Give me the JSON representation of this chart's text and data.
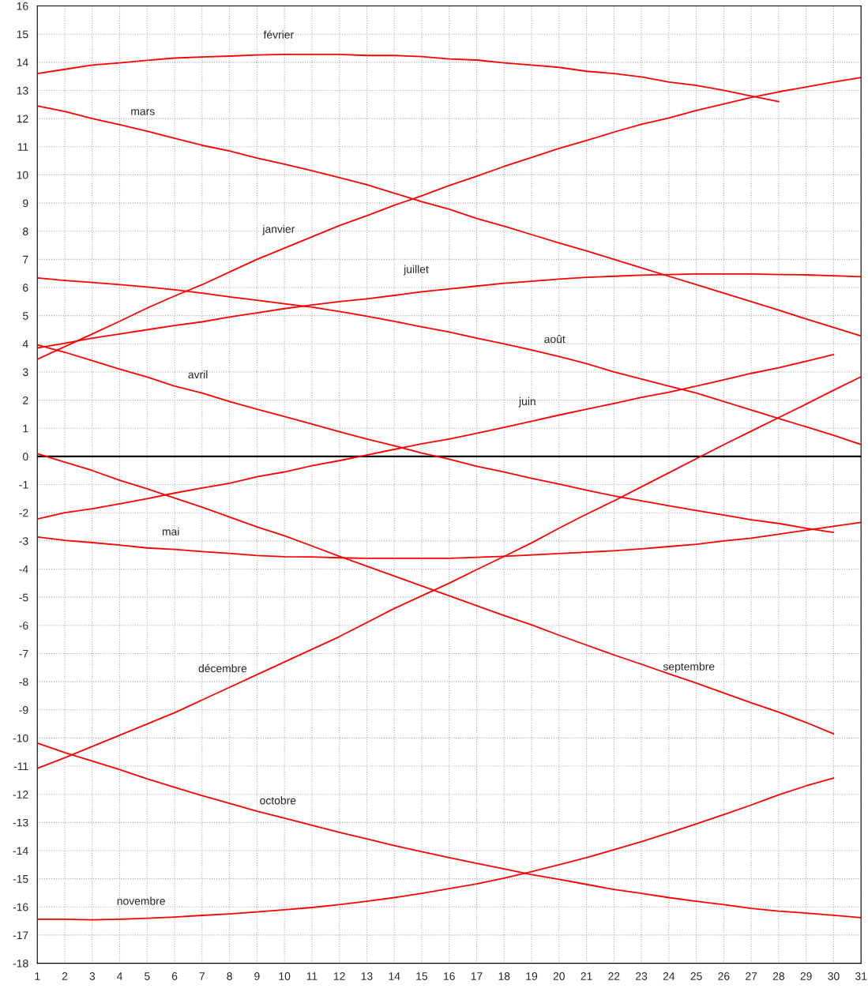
{
  "chart_data": {
    "type": "line",
    "x": [
      1,
      2,
      3,
      4,
      5,
      6,
      7,
      8,
      9,
      10,
      11,
      12,
      13,
      14,
      15,
      16,
      17,
      18,
      19,
      20,
      21,
      22,
      23,
      24,
      25,
      26,
      27,
      28,
      29,
      30,
      31
    ],
    "xlim": [
      1,
      31
    ],
    "xticks": [
      1,
      2,
      3,
      4,
      5,
      6,
      7,
      8,
      9,
      10,
      11,
      12,
      13,
      14,
      15,
      16,
      17,
      18,
      19,
      20,
      21,
      22,
      23,
      24,
      25,
      26,
      27,
      28,
      29,
      30,
      31
    ],
    "ylim": [
      -18,
      16
    ],
    "yticks": [
      -18,
      -17,
      -16,
      -15,
      -14,
      -13,
      -12,
      -11,
      -10,
      -9,
      -8,
      -7,
      -6,
      -5,
      -4,
      -3,
      -2,
      -1,
      0,
      1,
      2,
      3,
      4,
      5,
      6,
      7,
      8,
      9,
      10,
      11,
      12,
      13,
      14,
      15,
      16
    ],
    "grid": true,
    "legend": false,
    "marker": "none",
    "line_style": "solid",
    "ref_lines": [
      {
        "axis": "y",
        "value": 0,
        "color": "#000000"
      }
    ],
    "series": [
      {
        "name": "janvier",
        "color": "#ff0000",
        "values": [
          3.45,
          3.9,
          4.35,
          4.8,
          5.27,
          5.7,
          6.1,
          6.55,
          7.0,
          7.4,
          7.8,
          8.2,
          8.55,
          8.92,
          9.26,
          9.62,
          9.95,
          10.3,
          10.62,
          10.94,
          11.22,
          11.52,
          11.8,
          12.02,
          12.29,
          12.52,
          12.75,
          12.95,
          13.12,
          13.3,
          13.46
        ]
      },
      {
        "name": "février",
        "color": "#ff0000",
        "x": [
          1,
          2,
          3,
          4,
          5,
          6,
          7,
          8,
          9,
          10,
          11,
          12,
          13,
          14,
          15,
          16,
          17,
          18,
          19,
          20,
          21,
          22,
          23,
          24,
          25,
          26,
          27,
          28
        ],
        "values": [
          13.6,
          13.75,
          13.9,
          13.98,
          14.07,
          14.15,
          14.19,
          14.22,
          14.26,
          14.28,
          14.28,
          14.28,
          14.24,
          14.24,
          14.2,
          14.12,
          14.08,
          13.98,
          13.9,
          13.82,
          13.68,
          13.6,
          13.48,
          13.3,
          13.18,
          13.0,
          12.8,
          12.6
        ]
      },
      {
        "name": "mars",
        "color": "#ff0000",
        "values": [
          12.45,
          12.25,
          12.0,
          11.78,
          11.55,
          11.3,
          11.05,
          10.85,
          10.6,
          10.38,
          10.15,
          9.9,
          9.65,
          9.35,
          9.05,
          8.78,
          8.45,
          8.18,
          7.88,
          7.58,
          7.3,
          7.0,
          6.7,
          6.4,
          6.1,
          5.8,
          5.5,
          5.2,
          4.88,
          4.58,
          4.28
        ]
      },
      {
        "name": "avril",
        "color": "#ff0000",
        "x": [
          1,
          2,
          3,
          4,
          5,
          6,
          7,
          8,
          9,
          10,
          11,
          12,
          13,
          14,
          15,
          16,
          17,
          18,
          19,
          20,
          21,
          22,
          23,
          24,
          25,
          26,
          27,
          28,
          29,
          30
        ],
        "values": [
          3.96,
          3.7,
          3.4,
          3.1,
          2.82,
          2.5,
          2.25,
          1.95,
          1.68,
          1.42,
          1.15,
          0.88,
          0.62,
          0.38,
          0.12,
          -0.1,
          -0.35,
          -0.55,
          -0.78,
          -0.98,
          -1.2,
          -1.4,
          -1.58,
          -1.75,
          -1.92,
          -2.08,
          -2.25,
          -2.38,
          -2.55,
          -2.7
        ]
      },
      {
        "name": "mai",
        "color": "#ff0000",
        "values": [
          -2.86,
          -2.98,
          -3.06,
          -3.15,
          -3.25,
          -3.3,
          -3.38,
          -3.44,
          -3.52,
          -3.56,
          -3.57,
          -3.6,
          -3.62,
          -3.62,
          -3.62,
          -3.62,
          -3.58,
          -3.55,
          -3.5,
          -3.45,
          -3.4,
          -3.35,
          -3.28,
          -3.2,
          -3.12,
          -3.0,
          -2.9,
          -2.76,
          -2.62,
          -2.48,
          -2.34
        ]
      },
      {
        "name": "juin",
        "color": "#ff0000",
        "x": [
          1,
          2,
          3,
          4,
          5,
          6,
          7,
          8,
          9,
          10,
          11,
          12,
          13,
          14,
          15,
          16,
          17,
          18,
          19,
          20,
          21,
          22,
          23,
          24,
          25,
          26,
          27,
          28,
          29,
          30
        ],
        "values": [
          -2.22,
          -2.0,
          -1.86,
          -1.68,
          -1.5,
          -1.3,
          -1.12,
          -0.95,
          -0.72,
          -0.55,
          -0.33,
          -0.15,
          0.05,
          0.25,
          0.45,
          0.62,
          0.82,
          1.03,
          1.25,
          1.47,
          1.68,
          1.88,
          2.1,
          2.28,
          2.5,
          2.72,
          2.95,
          3.15,
          3.38,
          3.62
        ]
      },
      {
        "name": "juillet",
        "color": "#ff0000",
        "values": [
          3.85,
          4.02,
          4.2,
          4.35,
          4.5,
          4.65,
          4.78,
          4.95,
          5.1,
          5.25,
          5.38,
          5.5,
          5.6,
          5.72,
          5.85,
          5.95,
          6.05,
          6.15,
          6.22,
          6.3,
          6.36,
          6.4,
          6.44,
          6.46,
          6.48,
          6.48,
          6.48,
          6.46,
          6.45,
          6.42,
          6.38
        ]
      },
      {
        "name": "août",
        "color": "#ff0000",
        "values": [
          6.34,
          6.25,
          6.18,
          6.1,
          6.02,
          5.92,
          5.8,
          5.67,
          5.55,
          5.42,
          5.3,
          5.15,
          4.98,
          4.8,
          4.6,
          4.42,
          4.2,
          4.0,
          3.78,
          3.55,
          3.3,
          3.0,
          2.75,
          2.5,
          2.25,
          1.95,
          1.65,
          1.35,
          1.05,
          0.75,
          0.42
        ]
      },
      {
        "name": "septembre",
        "color": "#ff0000",
        "x": [
          1,
          2,
          3,
          4,
          5,
          6,
          7,
          8,
          9,
          10,
          11,
          12,
          13,
          14,
          15,
          16,
          17,
          18,
          19,
          20,
          21,
          22,
          23,
          24,
          25,
          26,
          27,
          28,
          29,
          30
        ],
        "values": [
          0.1,
          -0.2,
          -0.5,
          -0.85,
          -1.15,
          -1.48,
          -1.8,
          -2.15,
          -2.5,
          -2.82,
          -3.18,
          -3.55,
          -3.9,
          -4.25,
          -4.6,
          -4.95,
          -5.3,
          -5.65,
          -5.98,
          -6.35,
          -6.7,
          -7.05,
          -7.38,
          -7.72,
          -8.05,
          -8.4,
          -8.75,
          -9.08,
          -9.45,
          -9.85
        ]
      },
      {
        "name": "octobre",
        "color": "#ff0000",
        "values": [
          -10.18,
          -10.52,
          -10.82,
          -11.12,
          -11.45,
          -11.75,
          -12.05,
          -12.32,
          -12.6,
          -12.85,
          -13.1,
          -13.35,
          -13.58,
          -13.82,
          -14.04,
          -14.25,
          -14.45,
          -14.65,
          -14.85,
          -15.02,
          -15.2,
          -15.38,
          -15.52,
          -15.67,
          -15.8,
          -15.92,
          -16.05,
          -16.15,
          -16.22,
          -16.3,
          -16.38
        ]
      },
      {
        "name": "novembre",
        "color": "#ff0000",
        "x": [
          1,
          2,
          3,
          4,
          5,
          6,
          7,
          8,
          9,
          10,
          11,
          12,
          13,
          14,
          15,
          16,
          17,
          18,
          19,
          20,
          21,
          22,
          23,
          24,
          25,
          26,
          27,
          28,
          29,
          30
        ],
        "values": [
          -16.44,
          -16.44,
          -16.46,
          -16.44,
          -16.4,
          -16.36,
          -16.3,
          -16.25,
          -16.18,
          -16.1,
          -16.02,
          -15.92,
          -15.8,
          -15.67,
          -15.52,
          -15.35,
          -15.18,
          -14.98,
          -14.75,
          -14.5,
          -14.25,
          -13.97,
          -13.68,
          -13.37,
          -13.05,
          -12.72,
          -12.38,
          -12.02,
          -11.7,
          -11.42
        ]
      },
      {
        "name": "décembre",
        "color": "#ff0000",
        "values": [
          -11.08,
          -10.7,
          -10.3,
          -9.9,
          -9.5,
          -9.1,
          -8.65,
          -8.2,
          -7.75,
          -7.3,
          -6.85,
          -6.4,
          -5.9,
          -5.4,
          -4.95,
          -4.5,
          -4.02,
          -3.55,
          -3.07,
          -2.55,
          -2.05,
          -1.58,
          -1.08,
          -0.58,
          -0.08,
          0.42,
          0.9,
          1.38,
          1.86,
          2.35,
          2.83
        ]
      }
    ]
  }
}
